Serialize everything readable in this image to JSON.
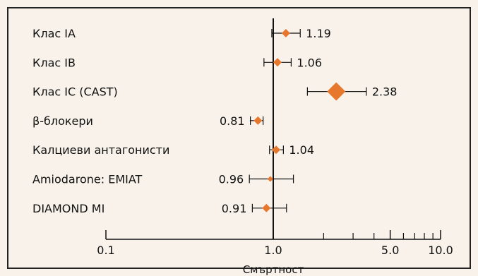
{
  "chart_data": {
    "type": "forest",
    "xlabel": "Смъртност",
    "x_scale": "log",
    "xlim": [
      0.1,
      10.0
    ],
    "x_ticks": [
      {
        "value": 0.1,
        "label": "0.1"
      },
      {
        "value": 1.0,
        "label": "1.0"
      },
      {
        "value": 5.0,
        "label": "5.0"
      },
      {
        "value": 10.0,
        "label": "10.0"
      }
    ],
    "minor_ticks": [
      2,
      3,
      4,
      6,
      7,
      8,
      9
    ],
    "reference_line": 1.0,
    "rows": [
      {
        "label": "Клас IA",
        "value": 1.19,
        "value_label": "1.19",
        "ci": [
          0.98,
          1.45
        ],
        "marker": "small",
        "value_side": "right"
      },
      {
        "label": "Клас IB",
        "value": 1.06,
        "value_label": "1.06",
        "ci": [
          0.88,
          1.28
        ],
        "marker": "small",
        "value_side": "right"
      },
      {
        "label": "Клас IC (CAST)",
        "value": 2.38,
        "value_label": "2.38",
        "ci": [
          1.6,
          3.6
        ],
        "marker": "large",
        "value_side": "right"
      },
      {
        "label": "β-блокери",
        "value": 0.81,
        "value_label": "0.81",
        "ci": [
          0.73,
          0.87
        ],
        "marker": "small",
        "value_side": "left"
      },
      {
        "label": "Калциеви антагонисти",
        "value": 1.04,
        "value_label": "1.04",
        "ci": [
          0.95,
          1.15
        ],
        "marker": "small",
        "value_side": "right"
      },
      {
        "label": "Amiodarone: EMIAT",
        "value": 0.96,
        "value_label": "0.96",
        "ci": [
          0.72,
          1.32
        ],
        "marker": "tiny",
        "value_side": "left"
      },
      {
        "label": "DIAMOND MI",
        "value": 0.91,
        "value_label": "0.91",
        "ci": [
          0.75,
          1.2
        ],
        "marker": "small",
        "value_side": "left"
      }
    ],
    "colors": {
      "background": "#f8f2ea",
      "border": "#222222",
      "marker": "#e8772e",
      "line": "#111111"
    }
  }
}
